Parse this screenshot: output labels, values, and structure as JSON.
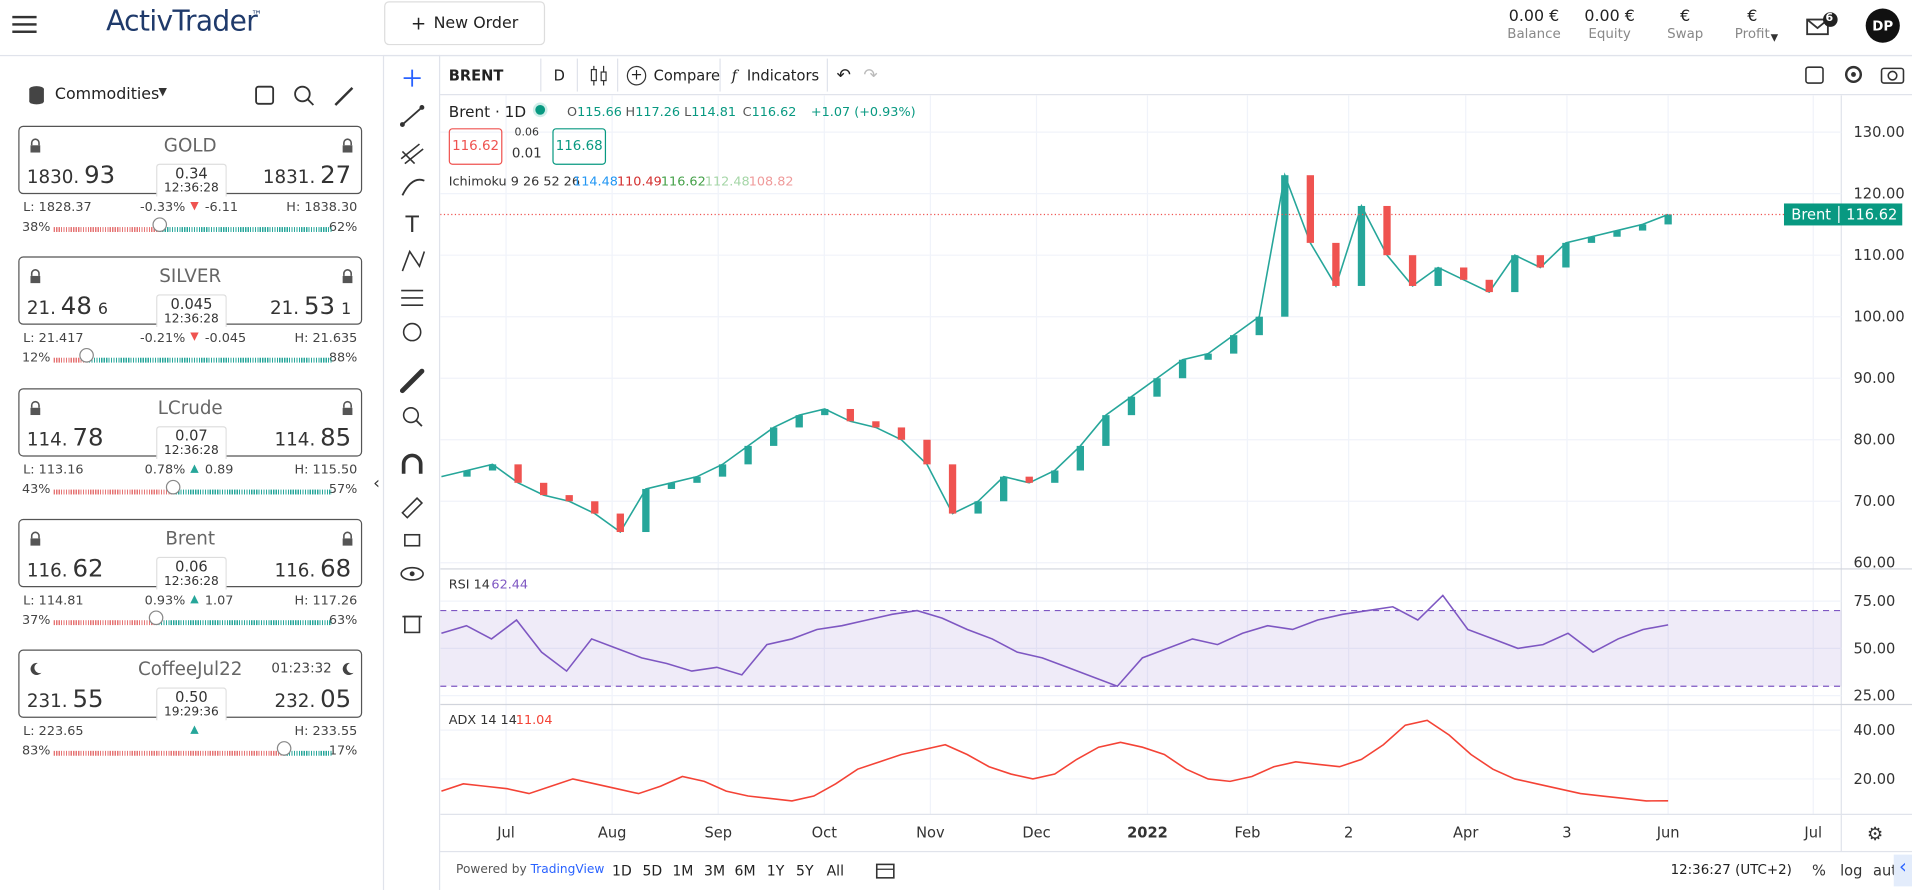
{
  "header": {
    "logo": "ActivTrader",
    "logo_tm": "™",
    "new_order": "New Order",
    "stats": [
      {
        "value": "0.00 €",
        "label": "Balance"
      },
      {
        "value": "0.00 €",
        "label": "Equity"
      },
      {
        "value": "€",
        "label": "Swap"
      },
      {
        "value": "€",
        "label": "Profit"
      }
    ],
    "mail_badge": "6",
    "avatar": "DP"
  },
  "sidebar": {
    "category": "Commodities",
    "instruments": [
      {
        "icon": "lock",
        "name": "GOLD",
        "bid": [
          "1830.",
          "93"
        ],
        "ask": [
          "1831.",
          "27"
        ],
        "spread": "0.34",
        "time": "12:36:28",
        "low": "L: 1828.37",
        "change_pct": "-0.33%",
        "direction": "down",
        "change": "-6.11",
        "high": "H: 1838.30",
        "sentiment": {
          "values": [
            38,
            62
          ],
          "value_labels": [
            "38%",
            "62%"
          ]
        }
      },
      {
        "icon": "lock",
        "name": "SILVER",
        "bid": [
          "21.",
          "48",
          "6"
        ],
        "ask": [
          "21.",
          "53",
          "1"
        ],
        "spread": "0.045",
        "time": "12:36:28",
        "low": "L: 21.417",
        "change_pct": "-0.21%",
        "direction": "down",
        "change": "-0.045",
        "high": "H: 21.635",
        "sentiment": {
          "values": [
            12,
            88
          ],
          "value_labels": [
            "12%",
            "88%"
          ]
        }
      },
      {
        "icon": "lock",
        "name": "LCrude",
        "bid": [
          "114.",
          "78"
        ],
        "ask": [
          "114.",
          "85"
        ],
        "spread": "0.07",
        "time": "12:36:28",
        "low": "L: 113.16",
        "change_pct": "0.78%",
        "direction": "up",
        "change": "0.89",
        "high": "H: 115.50",
        "sentiment": {
          "values": [
            43,
            57
          ],
          "value_labels": [
            "43%",
            "57%"
          ]
        }
      },
      {
        "icon": "lock",
        "name": "Brent",
        "bid": [
          "116.",
          "62"
        ],
        "ask": [
          "116.",
          "68"
        ],
        "spread": "0.06",
        "time": "12:36:28",
        "low": "L: 114.81",
        "change_pct": "0.93%",
        "direction": "up",
        "change": "1.07",
        "high": "H: 117.26",
        "sentiment": {
          "values": [
            37,
            63
          ],
          "value_labels": [
            "37%",
            "63%"
          ]
        }
      },
      {
        "icon": "moon",
        "name": "CoffeeJul22",
        "session": "01:23:32",
        "bid": [
          "231.",
          "55"
        ],
        "ask": [
          "232.",
          "05"
        ],
        "spread": "0.50",
        "time": "19:29:36",
        "low": "L: 223.65",
        "direction": "up",
        "high": "H: 233.55",
        "sentiment": {
          "values": [
            83,
            17
          ],
          "value_labels": [
            "83%",
            "17%"
          ]
        }
      }
    ]
  },
  "toolbar": {
    "symbol": "BRENT",
    "interval": "D",
    "compare": "Compare",
    "indicators": "Indicators"
  },
  "legend": {
    "title": "Brent · 1D",
    "ohlc": [
      {
        "label": "O",
        "value": "115.66"
      },
      {
        "label": "H",
        "value": "117.26"
      },
      {
        "label": "L",
        "value": "114.81"
      },
      {
        "label": "C",
        "value": "116.62"
      }
    ],
    "change": "+1.07 (+0.93%)",
    "sell": "116.62",
    "spread_top": "0.06",
    "spread_bottom": "0.01",
    "buy": "116.68",
    "ichimoku": {
      "name": "Ichimoku 9 26 52 26",
      "values": [
        "114.48",
        "110.49",
        "116.62",
        "112.48",
        "108.82"
      ],
      "colors": [
        "#2196f3",
        "#d32f2f",
        "#43a047",
        "#a5d6a7",
        "#ef9a9a"
      ]
    }
  },
  "price_pane": {
    "ylim": [
      59,
      136
    ],
    "yticks": [
      {
        "value": 130,
        "label": "130.00"
      },
      {
        "value": 120,
        "label": "120.00"
      },
      {
        "value": 110,
        "label": "110.00"
      },
      {
        "value": 100,
        "label": "100.00"
      },
      {
        "value": 90,
        "label": "90.00"
      },
      {
        "value": 80,
        "label": "80.00"
      },
      {
        "value": 70,
        "label": "70.00"
      },
      {
        "value": 60,
        "label": "60.00"
      }
    ],
    "color": "#26a69a",
    "values": [
      74,
      75,
      76,
      73,
      71,
      70,
      68,
      65,
      72,
      73,
      74,
      76,
      79,
      82,
      84,
      85,
      83,
      82,
      80,
      76,
      68,
      70,
      74,
      73,
      75,
      79,
      84,
      87,
      90,
      93,
      94,
      97,
      100,
      123,
      112,
      105,
      118,
      110,
      105,
      108,
      106,
      104,
      110,
      108,
      112,
      113,
      114,
      115,
      116.62
    ],
    "last": {
      "name": "Brent",
      "value": 116.62
    }
  },
  "rsi_pane": {
    "name": "RSI 14",
    "value": "62.44",
    "ylim": [
      21,
      92
    ],
    "yticks": [
      {
        "value": 75,
        "label": "75.00"
      },
      {
        "value": 50,
        "label": "50.00"
      },
      {
        "value": 25,
        "label": "25.00"
      }
    ],
    "band": [
      30,
      70
    ],
    "color": "#7e57c2",
    "values": [
      58,
      62,
      55,
      65,
      48,
      38,
      55,
      50,
      45,
      42,
      38,
      40,
      36,
      52,
      55,
      60,
      62,
      65,
      68,
      70,
      66,
      60,
      55,
      48,
      45,
      40,
      35,
      30,
      45,
      50,
      55,
      52,
      58,
      62,
      60,
      65,
      68,
      70,
      72,
      65,
      78,
      60,
      55,
      50,
      52,
      58,
      48,
      55,
      60,
      62.44
    ]
  },
  "adx_pane": {
    "name": "ADX 14 14",
    "value": "11.04",
    "ylim": [
      5.5,
      50.5
    ],
    "yticks": [
      {
        "value": 40,
        "label": "40.00"
      },
      {
        "value": 20,
        "label": "20.00"
      }
    ],
    "color": "#f44336",
    "values": [
      15,
      18,
      17,
      16,
      14,
      17,
      20,
      18,
      16,
      14,
      17,
      21,
      19,
      15,
      13,
      12,
      11,
      13,
      18,
      24,
      27,
      30,
      32,
      34,
      30,
      25,
      22,
      20,
      22,
      28,
      33,
      35,
      33,
      30,
      24,
      20,
      19,
      21,
      25,
      27,
      26,
      25,
      28,
      34,
      42,
      44,
      38,
      30,
      24,
      20,
      18,
      16,
      14,
      13,
      12,
      11,
      11.04
    ]
  },
  "time_axis": [
    "Jul",
    "Aug",
    "Sep",
    "Oct",
    "Nov",
    "Dec",
    "2022",
    "Feb",
    "2",
    "Apr",
    "3",
    "Jun",
    "Jul"
  ],
  "bottom": {
    "powered_by": "Powered by",
    "tradingview": "TradingView",
    "ranges": [
      "1D",
      "5D",
      "1M",
      "3M",
      "6M",
      "1Y",
      "5Y",
      "All"
    ],
    "clock": "12:36:27 (UTC+2)",
    "percent": "%",
    "log": "log",
    "auto": "auto"
  }
}
